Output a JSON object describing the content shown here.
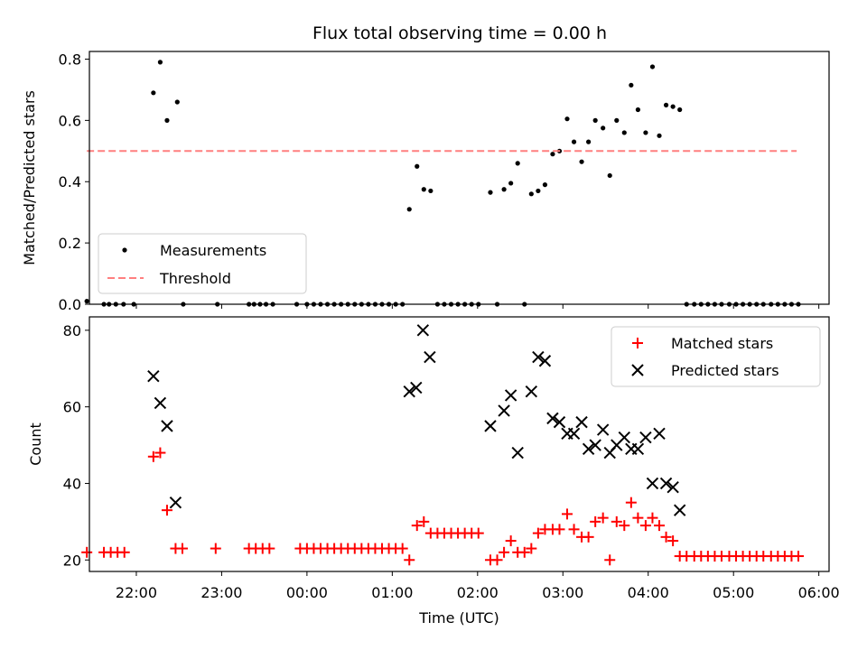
{
  "chart_data": {
    "title": "Flux total observing time = 0.00 h",
    "x_ticks": [
      "22:00",
      "23:00",
      "00:00",
      "01:00",
      "02:00",
      "03:00",
      "04:00",
      "05:00",
      "06:00"
    ],
    "x_tick_values": [
      22,
      23,
      24,
      25,
      26,
      27,
      28,
      29,
      30
    ],
    "xlabel": "Time (UTC)",
    "xlim": [
      21.45,
      30.12
    ],
    "panels": [
      {
        "type": "scatter",
        "ylabel": "Matched/Predicted stars",
        "ylim": [
          0,
          0.825
        ],
        "y_ticks": [
          0.0,
          0.2,
          0.4,
          0.6,
          0.8
        ],
        "y_tick_labels": [
          "0.0",
          "0.2",
          "0.4",
          "0.6",
          "0.8"
        ],
        "legend_position": "lower-left",
        "series": [
          {
            "name": "Measurements",
            "color": "#000000",
            "marker": "dot",
            "x": [
              21.42,
              21.62,
              21.68,
              21.76,
              21.85,
              21.97,
              22.2,
              22.28,
              22.36,
              22.48,
              22.55,
              22.95,
              23.32,
              23.38,
              23.45,
              23.52,
              23.6,
              23.88,
              24.0,
              24.08,
              24.16,
              24.24,
              24.32,
              24.4,
              24.48,
              24.56,
              24.64,
              24.72,
              24.8,
              24.88,
              24.96,
              25.04,
              25.12,
              25.2,
              25.29,
              25.37,
              25.45,
              25.53,
              25.61,
              25.69,
              25.77,
              25.85,
              25.93,
              26.01,
              26.15,
              26.23,
              26.31,
              26.39,
              26.47,
              26.55,
              26.63,
              26.71,
              26.79,
              26.88,
              26.96,
              27.05,
              27.13,
              27.22,
              27.3,
              27.38,
              27.47,
              27.55,
              27.63,
              27.72,
              27.8,
              27.88,
              27.97,
              28.05,
              28.13,
              28.21,
              28.29,
              28.37,
              28.45,
              28.54,
              28.62,
              28.7,
              28.78,
              28.86,
              28.95,
              29.03,
              29.11,
              29.19,
              29.27,
              29.35,
              29.44,
              29.52,
              29.6,
              29.68,
              29.76
            ],
            "y": [
              0.01,
              0.0,
              0.0,
              0.0,
              0.0,
              0.0,
              0.69,
              0.79,
              0.6,
              0.66,
              0.0,
              0.0,
              0.0,
              0.0,
              0.0,
              0.0,
              0.0,
              0.0,
              0.0,
              0.0,
              0.0,
              0.0,
              0.0,
              0.0,
              0.0,
              0.0,
              0.0,
              0.0,
              0.0,
              0.0,
              0.0,
              0.0,
              0.0,
              0.31,
              0.45,
              0.375,
              0.37,
              0.0,
              0.0,
              0.0,
              0.0,
              0.0,
              0.0,
              0.0,
              0.365,
              0.0,
              0.375,
              0.395,
              0.46,
              0.0,
              0.36,
              0.37,
              0.39,
              0.49,
              0.5,
              0.605,
              0.53,
              0.465,
              0.53,
              0.6,
              0.575,
              0.42,
              0.6,
              0.56,
              0.715,
              0.635,
              0.56,
              0.775,
              0.55,
              0.65,
              0.645,
              0.635,
              0.0,
              0.0,
              0.0,
              0.0,
              0.0,
              0.0,
              0.0,
              0.0,
              0.0,
              0.0,
              0.0,
              0.0,
              0.0,
              0.0,
              0.0,
              0.0,
              0.0
            ]
          },
          {
            "name": "Threshold",
            "color": "#ff7f7f",
            "style": "dashed-line",
            "x": [
              21.42,
              29.74
            ],
            "y": [
              0.5,
              0.5
            ]
          }
        ]
      },
      {
        "type": "scatter",
        "ylabel": "Count",
        "ylim": [
          17,
          83.5
        ],
        "y_ticks": [
          20,
          40,
          60,
          80
        ],
        "y_tick_labels": [
          "20",
          "40",
          "60",
          "80"
        ],
        "legend_position": "upper-right",
        "series": [
          {
            "name": "Matched stars",
            "color": "#ff0000",
            "marker": "plus",
            "x": [
              21.42,
              21.62,
              21.7,
              21.78,
              21.86,
              22.2,
              22.28,
              22.36,
              22.46,
              22.54,
              22.93,
              23.32,
              23.4,
              23.48,
              23.56,
              23.92,
              24.0,
              24.08,
              24.16,
              24.24,
              24.32,
              24.4,
              24.48,
              24.56,
              24.64,
              24.72,
              24.8,
              24.88,
              24.96,
              25.04,
              25.12,
              25.2,
              25.29,
              25.37,
              25.45,
              25.53,
              25.61,
              25.69,
              25.77,
              25.85,
              25.93,
              26.01,
              26.15,
              26.23,
              26.31,
              26.39,
              26.47,
              26.55,
              26.63,
              26.71,
              26.79,
              26.88,
              26.96,
              27.05,
              27.13,
              27.22,
              27.3,
              27.38,
              27.47,
              27.55,
              27.63,
              27.72,
              27.8,
              27.88,
              27.97,
              28.05,
              28.13,
              28.21,
              28.29,
              28.37,
              28.45,
              28.54,
              28.62,
              28.7,
              28.78,
              28.86,
              28.95,
              29.03,
              29.11,
              29.19,
              29.27,
              29.35,
              29.44,
              29.52,
              29.6,
              29.68,
              29.76
            ],
            "y": [
              22,
              22,
              22,
              22,
              22,
              47,
              48,
              33,
              23,
              23,
              23,
              23,
              23,
              23,
              23,
              23,
              23,
              23,
              23,
              23,
              23,
              23,
              23,
              23,
              23,
              23,
              23,
              23,
              23,
              23,
              23,
              20,
              29,
              30,
              27,
              27,
              27,
              27,
              27,
              27,
              27,
              27,
              20,
              20,
              22,
              25,
              22,
              22,
              23,
              27,
              28,
              28,
              28,
              32,
              28,
              26,
              26,
              30,
              31,
              20,
              30,
              29,
              35,
              31,
              29,
              31,
              29,
              26,
              25,
              21,
              21,
              21,
              21,
              21,
              21,
              21,
              21,
              21,
              21,
              21,
              21,
              21,
              21,
              21,
              21,
              21,
              21
            ]
          },
          {
            "name": "Predicted stars",
            "color": "#000000",
            "marker": "x",
            "x": [
              22.2,
              22.28,
              22.36,
              22.46,
              25.2,
              25.28,
              25.36,
              25.44,
              26.15,
              26.31,
              26.39,
              26.47,
              26.63,
              26.71,
              26.79,
              26.88,
              26.96,
              27.05,
              27.13,
              27.22,
              27.3,
              27.38,
              27.47,
              27.55,
              27.63,
              27.72,
              27.8,
              27.88,
              27.97,
              28.05,
              28.13,
              28.21,
              28.29,
              28.37
            ],
            "y": [
              68,
              61,
              55,
              35,
              64,
              65,
              80,
              73,
              55,
              59,
              63,
              48,
              64,
              73,
              72,
              57,
              56,
              53,
              53,
              56,
              49,
              50,
              54,
              48,
              50,
              52,
              49,
              49,
              52,
              40,
              53,
              40,
              39,
              33
            ]
          }
        ]
      }
    ]
  }
}
